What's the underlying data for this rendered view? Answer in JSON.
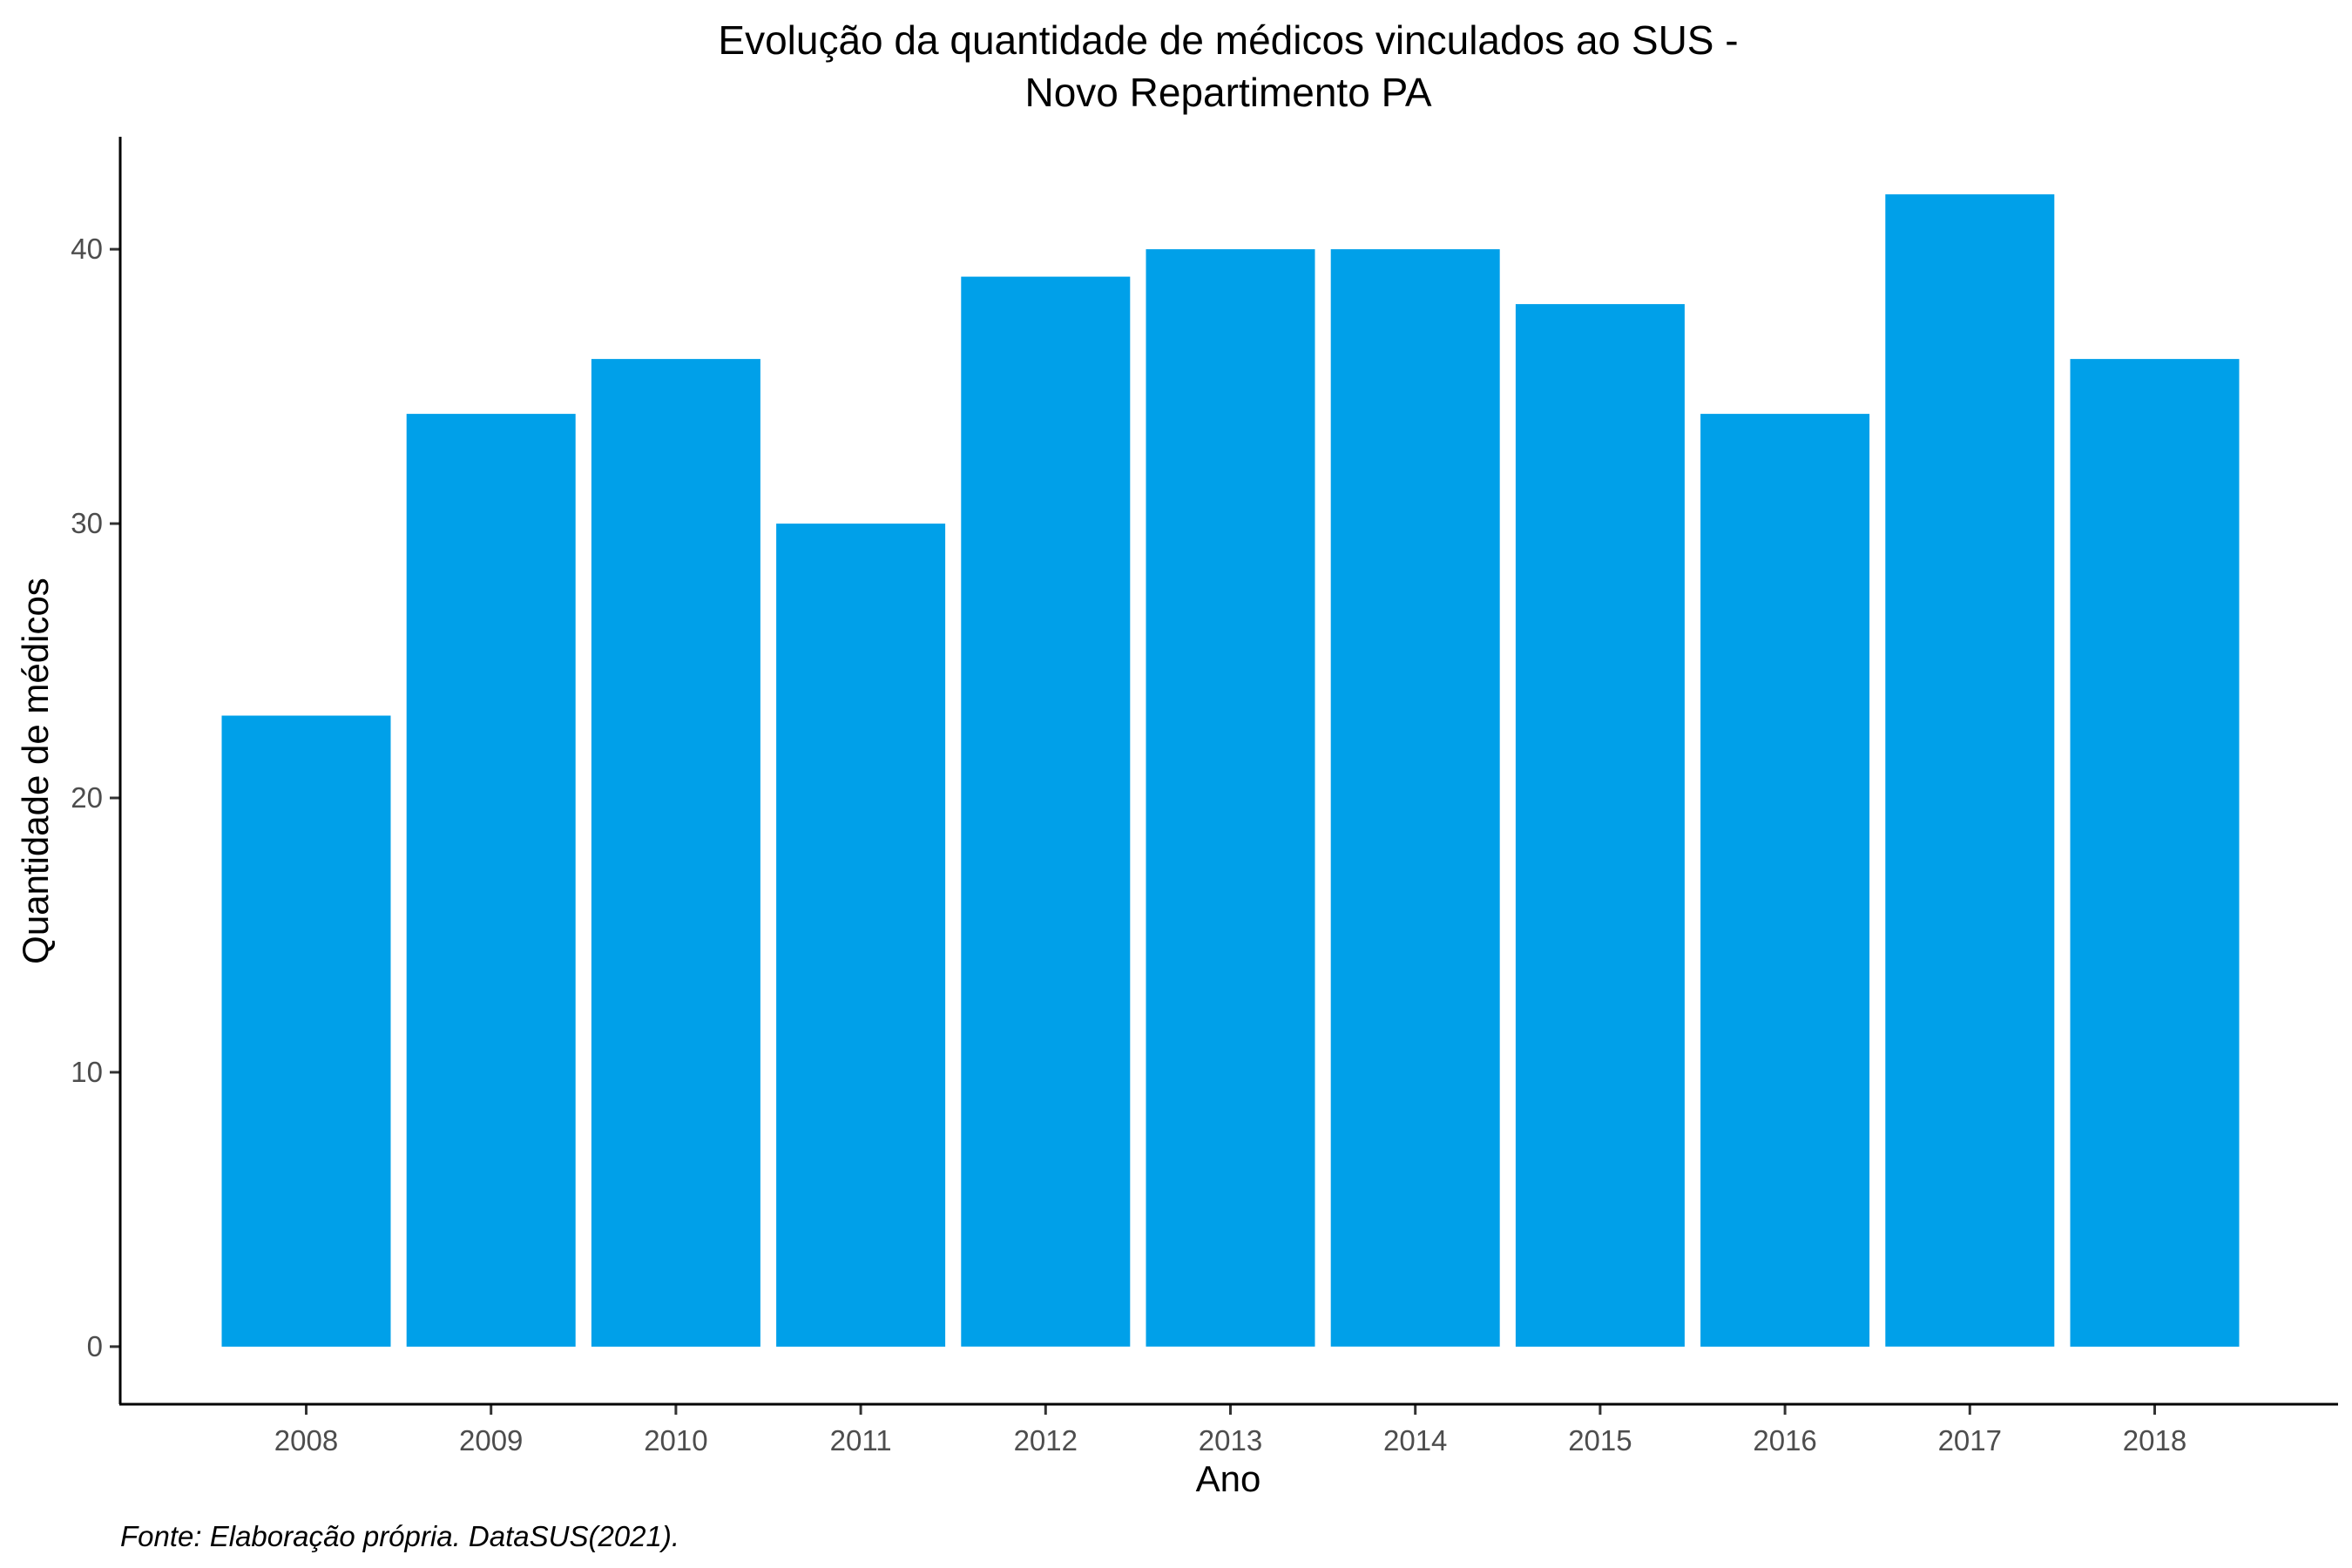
{
  "chart_data": {
    "type": "bar",
    "title": [
      "Evolução da quantidade de médicos vinculados ao SUS -",
      "Novo Repartimento PA"
    ],
    "xlabel": "Ano",
    "ylabel": "Quantidade de médicos",
    "caption": "Fonte: Elaboração própria. DataSUS(2021).",
    "categories": [
      "2008",
      "2009",
      "2010",
      "2011",
      "2012",
      "2013",
      "2014",
      "2015",
      "2016",
      "2017",
      "2018"
    ],
    "values": [
      23,
      34,
      36,
      30,
      39,
      40,
      40,
      38,
      34,
      42,
      36
    ],
    "yticks": [
      0,
      10,
      20,
      30,
      40
    ],
    "ylim": [
      -2.1,
      44.1
    ],
    "bar_color": "#00A0E9",
    "grid": false,
    "legend": "none"
  }
}
